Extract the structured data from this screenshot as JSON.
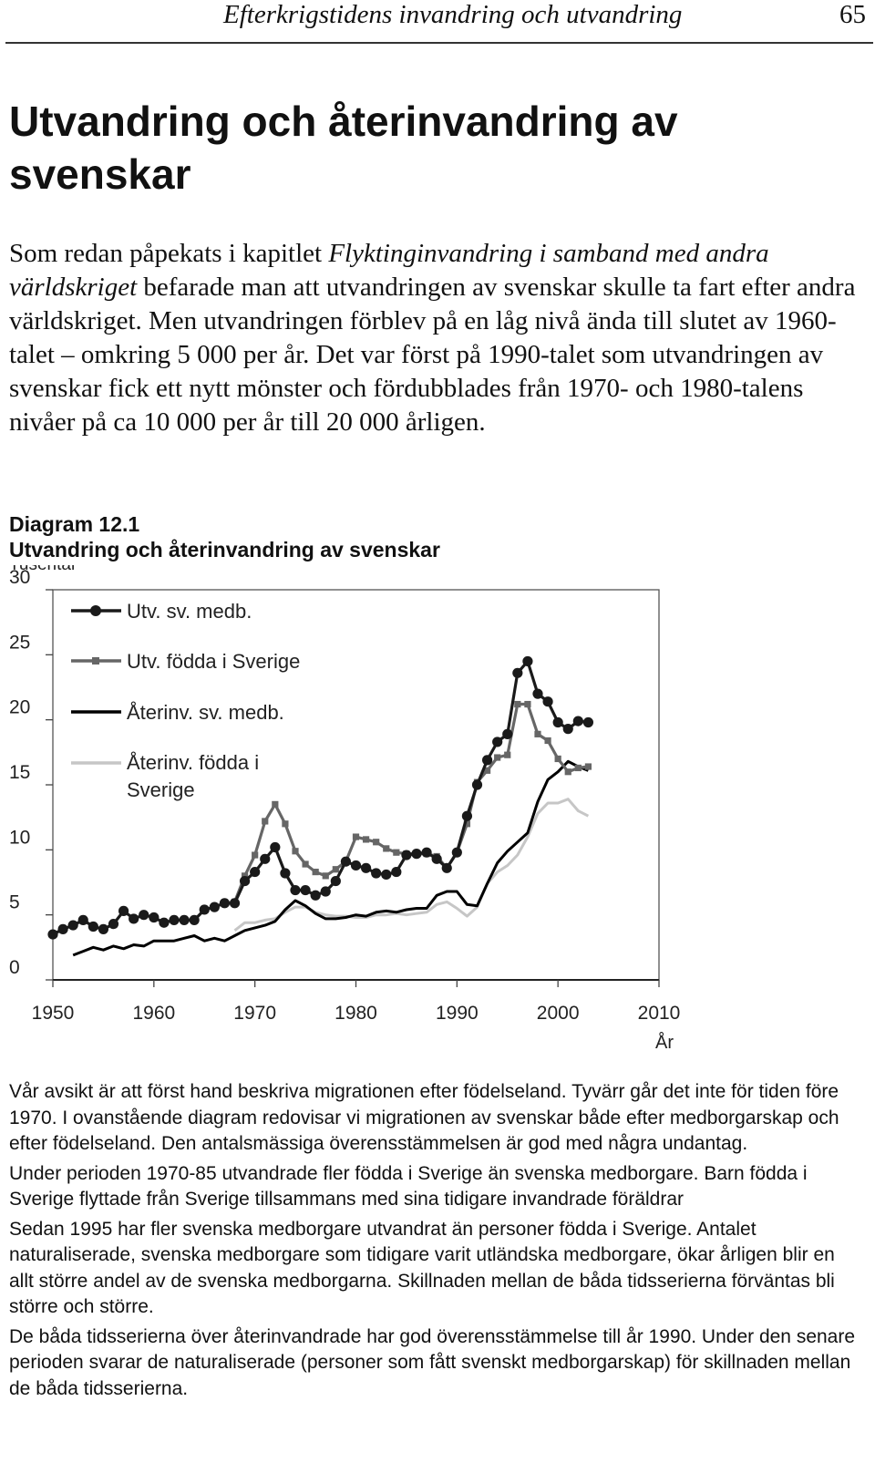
{
  "header": {
    "running_title": "Efterkrigstidens invandring  och utvandring",
    "page_number": "65"
  },
  "section_title": "Utvandring och återinvandring av svenskar",
  "intro": {
    "part1": "Som redan påpekats i kapitlet ",
    "chapter_ref": "Flyktinginvandring i samband med andra världskriget",
    "part2": " befarade man att utvandringen av svenskar skulle ta fart efter andra världskriget. Men utvandringen förblev på en låg nivå ända till slutet av 1960-talet – omkring 5 000 per år. Det var först på 1990-talet som utvandringen av svenskar fick ett nytt mönster och fördubblades från 1970- och 1980-talens nivåer på ca 10 000 per år till 20 000 årligen."
  },
  "figure": {
    "number": "Diagram 12.1",
    "title": "Utvandring och återinvandring av svenskar"
  },
  "chart_data": {
    "type": "line",
    "ylabel": "Tusental",
    "xlabel": "År",
    "xlim": [
      1950,
      2010
    ],
    "ylim": [
      0,
      30
    ],
    "x_ticks": [
      "1950",
      "1960",
      "1970",
      "1980",
      "1990",
      "2000",
      "2010"
    ],
    "y_ticks": [
      "0",
      "5",
      "10",
      "15",
      "20",
      "25",
      "30"
    ],
    "grid": false,
    "legend_position": "top-left",
    "series": [
      {
        "name": "Utv. sv. medb.",
        "color": "#1a1a1a",
        "marker": "circle",
        "x": [
          1950,
          1951,
          1952,
          1953,
          1954,
          1955,
          1956,
          1957,
          1958,
          1959,
          1960,
          1961,
          1962,
          1963,
          1964,
          1965,
          1966,
          1967,
          1968,
          1969,
          1970,
          1971,
          1972,
          1973,
          1974,
          1975,
          1976,
          1977,
          1978,
          1979,
          1980,
          1981,
          1982,
          1983,
          1984,
          1985,
          1986,
          1987,
          1988,
          1989,
          1990,
          1991,
          1992,
          1993,
          1994,
          1995,
          1996,
          1997,
          1998,
          1999,
          2000,
          2001,
          2002,
          2003
        ],
        "y": [
          3.5,
          3.9,
          4.2,
          4.6,
          4.1,
          3.9,
          4.3,
          5.3,
          4.7,
          5.0,
          4.8,
          4.4,
          4.6,
          4.6,
          4.6,
          5.4,
          5.6,
          5.9,
          5.9,
          7.6,
          8.3,
          9.3,
          10.2,
          8.2,
          6.9,
          6.9,
          6.5,
          6.8,
          7.6,
          9.1,
          8.8,
          8.6,
          8.2,
          8.1,
          8.3,
          9.6,
          9.7,
          9.8,
          9.3,
          8.6,
          9.8,
          12.6,
          15.0,
          16.9,
          18.3,
          18.9,
          23.6,
          24.5,
          22.0,
          21.4,
          19.8,
          19.3,
          19.9,
          19.8
        ]
      },
      {
        "name": "Utv. födda i Sverige",
        "color": "#666666",
        "marker": "square",
        "x": [
          1968,
          1969,
          1970,
          1971,
          1972,
          1973,
          1974,
          1975,
          1976,
          1977,
          1978,
          1979,
          1980,
          1981,
          1982,
          1983,
          1984,
          1985,
          1986,
          1987,
          1988,
          1989,
          1990,
          1991,
          1992,
          1993,
          1994,
          1995,
          1996,
          1997,
          1998,
          1999,
          2000,
          2001,
          2002,
          2003
        ],
        "y": [
          6.0,
          8.0,
          9.6,
          12.2,
          13.5,
          12.0,
          9.9,
          8.9,
          8.3,
          8.0,
          8.5,
          9.1,
          11.0,
          10.8,
          10.6,
          10.1,
          9.8,
          9.7,
          9.7,
          9.7,
          9.5,
          8.6,
          9.8,
          12.0,
          15.2,
          16.1,
          17.1,
          17.3,
          21.2,
          21.2,
          18.9,
          18.4,
          17.0,
          16.0,
          16.3,
          16.4
        ]
      },
      {
        "name": "Återinv. sv. medb.",
        "color": "#000000",
        "marker": "none",
        "x": [
          1952,
          1953,
          1954,
          1955,
          1956,
          1957,
          1958,
          1959,
          1960,
          1961,
          1962,
          1963,
          1964,
          1965,
          1966,
          1967,
          1968,
          1969,
          1970,
          1971,
          1972,
          1973,
          1974,
          1975,
          1976,
          1977,
          1978,
          1979,
          1980,
          1981,
          1982,
          1983,
          1984,
          1985,
          1986,
          1987,
          1988,
          1989,
          1990,
          1991,
          1992,
          1993,
          1994,
          1995,
          1996,
          1997,
          1998,
          1999,
          2000,
          2001,
          2002,
          2003
        ],
        "y": [
          1.9,
          2.2,
          2.5,
          2.3,
          2.6,
          2.4,
          2.7,
          2.6,
          3.0,
          3.0,
          3.0,
          3.2,
          3.4,
          3.0,
          3.2,
          3.0,
          3.4,
          3.8,
          4.0,
          4.2,
          4.5,
          5.4,
          6.1,
          5.7,
          5.1,
          4.7,
          4.7,
          4.8,
          5.0,
          4.9,
          5.2,
          5.3,
          5.2,
          5.4,
          5.5,
          5.5,
          6.5,
          6.8,
          6.8,
          5.8,
          5.7,
          7.4,
          9.0,
          9.9,
          10.6,
          11.3,
          13.7,
          15.4,
          16.0,
          16.8,
          16.4,
          16.1
        ]
      },
      {
        "name": "Återinv. födda i Sverige",
        "color": "#c6c6c6",
        "marker": "none",
        "x": [
          1968,
          1969,
          1970,
          1971,
          1972,
          1973,
          1974,
          1975,
          1976,
          1977,
          1978,
          1979,
          1980,
          1981,
          1982,
          1983,
          1984,
          1985,
          1986,
          1987,
          1988,
          1989,
          1990,
          1991,
          1992,
          1993,
          1994,
          1995,
          1996,
          1997,
          1998,
          1999,
          2000,
          2001,
          2002,
          2003
        ],
        "y": [
          3.8,
          4.4,
          4.4,
          4.6,
          4.7,
          5.2,
          5.6,
          5.6,
          5.2,
          5.0,
          4.9,
          4.9,
          4.8,
          4.8,
          5.0,
          5.0,
          5.1,
          5.0,
          5.1,
          5.2,
          5.8,
          6.0,
          5.5,
          4.9,
          5.6,
          7.4,
          8.3,
          8.8,
          9.6,
          11.0,
          12.8,
          13.6,
          13.6,
          13.9,
          13.0,
          12.6
        ]
      }
    ]
  },
  "body_paragraphs": [
    "Vår avsikt är att först hand beskriva migrationen efter födelseland. Tyvärr går det inte för tiden före 1970. I ovanstående diagram redovisar vi migrationen av svenskar både efter medborgarskap och efter födelseland. Den antalsmässiga överensstämmelsen är god med några undantag.",
    "Under perioden 1970-85 utvandrade fler födda i Sverige än svenska medborgare. Barn födda i Sverige flyttade från Sverige tillsammans med sina tidigare invandrade föräldrar",
    "Sedan 1995 har fler svenska medborgare utvandrat än personer födda i Sverige. Antalet naturaliserade, svenska medborgare som tidigare varit utländska medborgare, ökar årligen blir en allt större andel av de svenska medborgarna. Skillnaden mellan de båda tidsserierna förväntas bli större och större.",
    "De båda tidsserierna över återinvandrade har god överensstämmelse till år 1990. Under den senare perioden svarar de naturaliserade (personer som fått svenskt medborgarskap) för skillnaden mellan de båda tidsserierna."
  ]
}
